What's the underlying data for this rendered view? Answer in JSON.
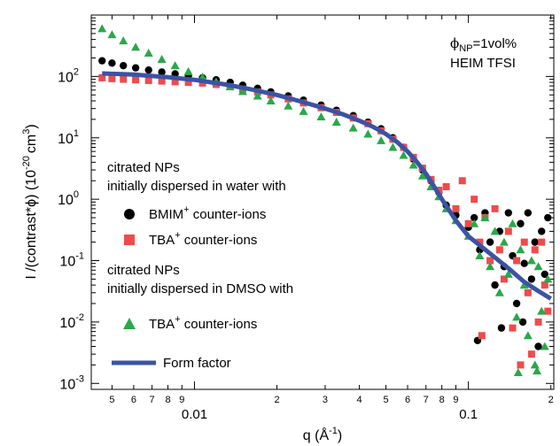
{
  "chart_data": {
    "type": "scatter",
    "title": "",
    "xlabel": "q (Å",
    "xlabel_exp": "-1",
    "xlabel_close": ")",
    "ylabel_main": "I /(contrast*ϕ) (10",
    "ylabel_exp1": "-20",
    "ylabel_mid": "cm",
    "ylabel_exp2": "3",
    "ylabel_close": ")",
    "x_scale": "log",
    "y_scale": "log",
    "xlim": [
      0.0042,
      0.205
    ],
    "ylim": [
      0.0008,
      1000
    ],
    "grid": false,
    "x_major_ticks": [
      {
        "value": 0.01,
        "label": "0.01"
      },
      {
        "value": 0.1,
        "label": "0.1"
      }
    ],
    "x_minor_ticks": [
      {
        "value": 0.005,
        "label": "5"
      },
      {
        "value": 0.006,
        "label": "6"
      },
      {
        "value": 0.007,
        "label": "7"
      },
      {
        "value": 0.008,
        "label": "8"
      },
      {
        "value": 0.009,
        "label": "9"
      },
      {
        "value": 0.02,
        "label": "2"
      },
      {
        "value": 0.03,
        "label": "3"
      },
      {
        "value": 0.04,
        "label": "4"
      },
      {
        "value": 0.05,
        "label": "5"
      },
      {
        "value": 0.06,
        "label": "6"
      },
      {
        "value": 0.07,
        "label": "7"
      },
      {
        "value": 0.08,
        "label": "8"
      },
      {
        "value": 0.09,
        "label": "9"
      },
      {
        "value": 0.2,
        "label": "2"
      }
    ],
    "y_ticks": [
      {
        "value": 0.001,
        "mantissa": "10",
        "exp": "-3"
      },
      {
        "value": 0.01,
        "mantissa": "10",
        "exp": "-2"
      },
      {
        "value": 0.1,
        "mantissa": "10",
        "exp": "-1"
      },
      {
        "value": 1,
        "mantissa": "10",
        "exp": "0"
      },
      {
        "value": 10,
        "mantissa": "10",
        "exp": "1"
      },
      {
        "value": 100,
        "mantissa": "10",
        "exp": "2"
      }
    ],
    "annotation": {
      "phi": "ϕ",
      "phi_sub": "NP",
      "phi_rest": "=1vol%",
      "line2": "HEIM TFSI"
    },
    "legend": {
      "group1_line1": "citrated NPs",
      "group1_line2": "initially dispersed in water with",
      "group2_line1": "citrated NPs",
      "group2_line2": "initially dispersed in DMSO with",
      "entries": [
        {
          "series": 0,
          "ion": "BMIM",
          "sup": "+",
          "rest": " counter-ions"
        },
        {
          "series": 1,
          "ion": "TBA",
          "sup": "+",
          "rest": " counter-ions"
        },
        {
          "series": 2,
          "ion": "TBA",
          "sup": "+",
          "rest": " counter-ions"
        },
        {
          "series": 3,
          "ion": "Form factor",
          "sup": "",
          "rest": ""
        }
      ]
    },
    "series": [
      {
        "name": "BMIM+ counter-ions (water)",
        "color": "#000000",
        "marker": "circle",
        "points": [
          [
            0.0046,
            180
          ],
          [
            0.005,
            165
          ],
          [
            0.0055,
            150
          ],
          [
            0.0061,
            138
          ],
          [
            0.0068,
            127
          ],
          [
            0.0076,
            118
          ],
          [
            0.0085,
            110
          ],
          [
            0.0095,
            102
          ],
          [
            0.0107,
            95
          ],
          [
            0.012,
            88
          ],
          [
            0.0135,
            80
          ],
          [
            0.015,
            72
          ],
          [
            0.017,
            64
          ],
          [
            0.019,
            56
          ],
          [
            0.022,
            48
          ],
          [
            0.025,
            41
          ],
          [
            0.029,
            34
          ],
          [
            0.033,
            28
          ],
          [
            0.038,
            23
          ],
          [
            0.043,
            18
          ],
          [
            0.048,
            14
          ],
          [
            0.053,
            10
          ],
          [
            0.058,
            7
          ],
          [
            0.063,
            4.5
          ],
          [
            0.068,
            3
          ],
          [
            0.073,
            2
          ],
          [
            0.078,
            1.3
          ],
          [
            0.083,
            0.8
          ],
          [
            0.09,
            0.55
          ],
          [
            0.1,
            0.35
          ],
          [
            0.105,
            0.5
          ],
          [
            0.11,
            0.15
          ],
          [
            0.115,
            0.6
          ],
          [
            0.12,
            0.2
          ],
          [
            0.125,
            0.04
          ],
          [
            0.13,
            0.3
          ],
          [
            0.135,
            0.08
          ],
          [
            0.14,
            0.6
          ],
          [
            0.145,
            0.12
          ],
          [
            0.15,
            0.02
          ],
          [
            0.155,
            0.4
          ],
          [
            0.16,
            0.09
          ],
          [
            0.165,
            0.6
          ],
          [
            0.17,
            0.05
          ],
          [
            0.175,
            0.2
          ],
          [
            0.18,
            0.004
          ],
          [
            0.185,
            0.3
          ],
          [
            0.19,
            0.06
          ],
          [
            0.195,
            0.5
          ],
          [
            0.108,
            0.005
          ],
          [
            0.132,
            0.008
          ],
          [
            0.158,
            0.01
          ]
        ]
      },
      {
        "name": "TBA+ counter-ions (water)",
        "color": "#ef4b4b",
        "marker": "square",
        "points": [
          [
            0.0046,
            95
          ],
          [
            0.005,
            92
          ],
          [
            0.0055,
            90
          ],
          [
            0.0061,
            88
          ],
          [
            0.0068,
            86
          ],
          [
            0.0076,
            84
          ],
          [
            0.0085,
            82
          ],
          [
            0.0095,
            80
          ],
          [
            0.0107,
            78
          ],
          [
            0.012,
            74
          ],
          [
            0.0135,
            68
          ],
          [
            0.015,
            62
          ],
          [
            0.017,
            56
          ],
          [
            0.019,
            50
          ],
          [
            0.022,
            43
          ],
          [
            0.025,
            37
          ],
          [
            0.029,
            31
          ],
          [
            0.033,
            26
          ],
          [
            0.038,
            21
          ],
          [
            0.043,
            17
          ],
          [
            0.048,
            13
          ],
          [
            0.053,
            9.5
          ],
          [
            0.058,
            7
          ],
          [
            0.063,
            4.8
          ],
          [
            0.068,
            3.2
          ],
          [
            0.073,
            2.1
          ],
          [
            0.078,
            1.4
          ],
          [
            0.083,
            1.6
          ],
          [
            0.09,
            0.7
          ],
          [
            0.095,
            2
          ],
          [
            0.1,
            0.4
          ],
          [
            0.105,
            1
          ],
          [
            0.11,
            0.2
          ],
          [
            0.115,
            0.5
          ],
          [
            0.12,
            0.1
          ],
          [
            0.125,
            0.7
          ],
          [
            0.13,
            0.15
          ],
          [
            0.135,
            0.05
          ],
          [
            0.14,
            0.3
          ],
          [
            0.145,
            0.008
          ],
          [
            0.15,
            0.1
          ],
          [
            0.155,
            0.002
          ],
          [
            0.16,
            0.2
          ],
          [
            0.165,
            0.03
          ],
          [
            0.17,
            0.003
          ],
          [
            0.175,
            0.15
          ],
          [
            0.18,
            0.01
          ],
          [
            0.185,
            0.2
          ],
          [
            0.19,
            0.04
          ],
          [
            0.195,
            0.015
          ],
          [
            0.112,
            0.006
          ]
        ]
      },
      {
        "name": "TBA+ counter-ions (DMSO)",
        "color": "#2aa84a",
        "marker": "triangle",
        "points": [
          [
            0.0046,
            600
          ],
          [
            0.005,
            480
          ],
          [
            0.0055,
            380
          ],
          [
            0.0061,
            300
          ],
          [
            0.0068,
            240
          ],
          [
            0.0076,
            190
          ],
          [
            0.0085,
            150
          ],
          [
            0.0095,
            120
          ],
          [
            0.0107,
            98
          ],
          [
            0.012,
            82
          ],
          [
            0.0135,
            68
          ],
          [
            0.015,
            57
          ],
          [
            0.017,
            48
          ],
          [
            0.019,
            40
          ],
          [
            0.022,
            33
          ],
          [
            0.025,
            27
          ],
          [
            0.029,
            22
          ],
          [
            0.033,
            18
          ],
          [
            0.038,
            14.5
          ],
          [
            0.043,
            11.5
          ],
          [
            0.048,
            9
          ],
          [
            0.053,
            7
          ],
          [
            0.058,
            5.2
          ],
          [
            0.063,
            3.6
          ],
          [
            0.068,
            2.4
          ],
          [
            0.073,
            1.6
          ],
          [
            0.078,
            1.1
          ],
          [
            0.083,
            0.7
          ],
          [
            0.09,
            0.45
          ],
          [
            0.1,
            0.25
          ],
          [
            0.105,
            0.4
          ],
          [
            0.11,
            0.12
          ],
          [
            0.115,
            0.5
          ],
          [
            0.12,
            0.08
          ],
          [
            0.125,
            0.3
          ],
          [
            0.13,
            0.03
          ],
          [
            0.135,
            0.2
          ],
          [
            0.14,
            0.06
          ],
          [
            0.145,
            0.4
          ],
          [
            0.15,
            0.012
          ],
          [
            0.155,
            0.15
          ],
          [
            0.16,
            0.04
          ],
          [
            0.165,
            0.006
          ],
          [
            0.17,
            0.1
          ],
          [
            0.175,
            0.002
          ],
          [
            0.18,
            0.08
          ],
          [
            0.185,
            0.015
          ],
          [
            0.19,
            0.004
          ],
          [
            0.195,
            0.05
          ],
          [
            0.152,
            0.0015
          ],
          [
            0.178,
            0.0016
          ]
        ]
      },
      {
        "name": "Form factor",
        "color": "#3b53a5",
        "marker": "line",
        "points": [
          [
            0.0046,
            112
          ],
          [
            0.006,
            107
          ],
          [
            0.008,
            97
          ],
          [
            0.01,
            88
          ],
          [
            0.013,
            74
          ],
          [
            0.016,
            62
          ],
          [
            0.02,
            50
          ],
          [
            0.025,
            38
          ],
          [
            0.03,
            30
          ],
          [
            0.035,
            24
          ],
          [
            0.04,
            19
          ],
          [
            0.045,
            15
          ],
          [
            0.05,
            11.5
          ],
          [
            0.055,
            8.5
          ],
          [
            0.06,
            6
          ],
          [
            0.065,
            4
          ],
          [
            0.07,
            2.6
          ],
          [
            0.075,
            1.6
          ],
          [
            0.08,
            1
          ],
          [
            0.09,
            0.45
          ],
          [
            0.1,
            0.25
          ],
          [
            0.12,
            0.13
          ],
          [
            0.14,
            0.075
          ],
          [
            0.16,
            0.045
          ],
          [
            0.18,
            0.032
          ],
          [
            0.2,
            0.024
          ]
        ]
      }
    ]
  }
}
